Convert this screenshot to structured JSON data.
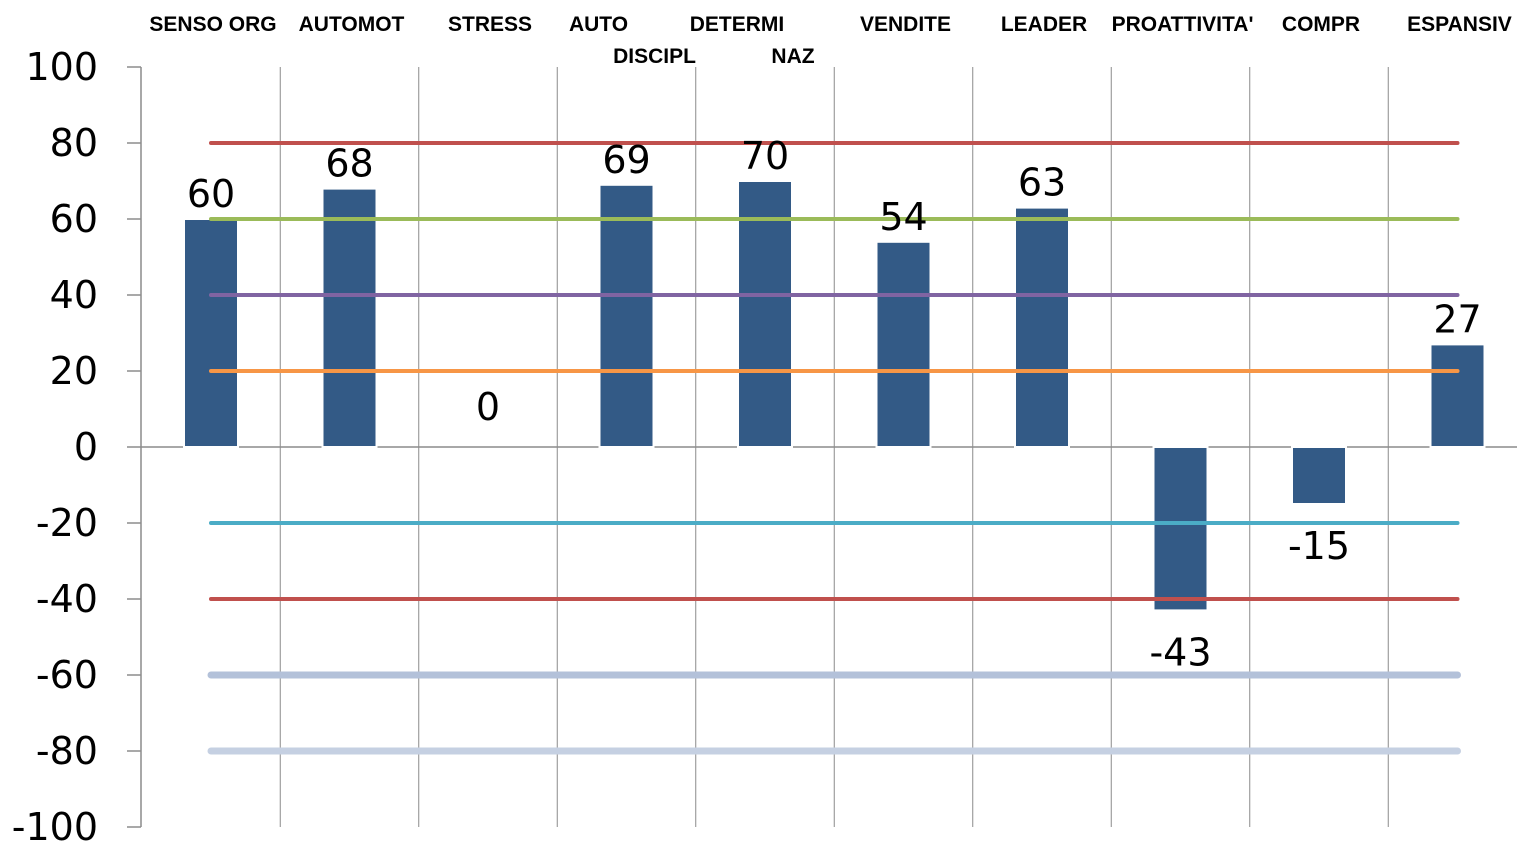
{
  "chart_data": {
    "type": "bar",
    "categories": [
      [
        "SENSO ORG"
      ],
      [
        "AUTOMOT"
      ],
      [
        "STRESS"
      ],
      [
        "AUTO",
        "DISCIPL"
      ],
      [
        "DETERMI",
        "NAZ"
      ],
      [
        "VENDITE"
      ],
      [
        "LEADER"
      ],
      [
        "PROATTIVITA'"
      ],
      [
        "COMPR"
      ],
      [
        "ESPANSIV"
      ]
    ],
    "values": [
      60,
      68,
      0,
      69,
      70,
      54,
      63,
      -43,
      -15,
      27
    ],
    "value_labels": [
      "60",
      "68",
      "0",
      "69",
      "70",
      "54",
      "63",
      "-43",
      "-15",
      "27"
    ],
    "ylim": [
      -100,
      100
    ],
    "yticks": [
      100,
      80,
      60,
      40,
      20,
      0,
      -20,
      -40,
      -60,
      -80,
      -100
    ],
    "ytick_labels": [
      "100",
      "80",
      "60",
      "40",
      "20",
      "0",
      "-20",
      "-40",
      "-60",
      "-80",
      "-100"
    ],
    "xlabel": "",
    "ylabel": "",
    "title": "",
    "legend": "none",
    "grid": "vertical",
    "category_labels_position": "top",
    "bar_color": "#335A86",
    "reference_lines": [
      {
        "y": 80,
        "color": "#C0504D",
        "style": "thin"
      },
      {
        "y": 60,
        "color": "#9BBB59",
        "style": "thin"
      },
      {
        "y": 40,
        "color": "#8064A2",
        "style": "thin"
      },
      {
        "y": 20,
        "color": "#F79646",
        "style": "thin"
      },
      {
        "y": -20,
        "color": "#4BACC6",
        "style": "thin"
      },
      {
        "y": -40,
        "color": "#C0504D",
        "style": "thin"
      },
      {
        "y": -60,
        "color": "#B3C1D9",
        "style": "thick"
      },
      {
        "y": -80,
        "color": "#C5D0E2",
        "style": "thick"
      }
    ]
  }
}
